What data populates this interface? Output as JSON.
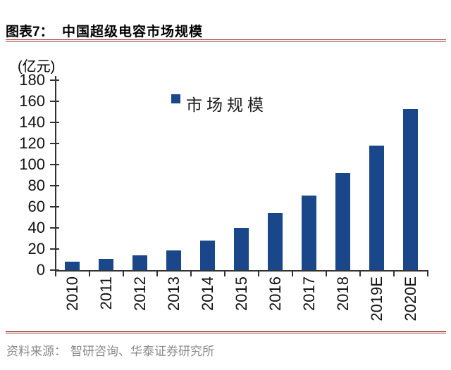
{
  "figure": {
    "label": "图表7：",
    "title": "中国超级电容市场规模"
  },
  "chart_data": {
    "type": "bar",
    "title": "中国超级电容市场规模",
    "ylabel": "(亿元)",
    "xlabel": "",
    "categories": [
      "2010",
      "2011",
      "2012",
      "2013",
      "2014",
      "2015",
      "2016",
      "2017",
      "2018",
      "2019E",
      "2020E"
    ],
    "values": [
      8,
      11,
      14,
      19,
      28,
      40,
      54,
      71,
      92,
      118,
      153
    ],
    "ylim": [
      0,
      180
    ],
    "ytick_interval": 20,
    "grid": false,
    "legend_position": "top-center",
    "legend": [
      {
        "label": "市场规模",
        "color": "#1A478A"
      }
    ],
    "bar_color": "#1A478A",
    "axis_color": "#333333"
  },
  "source": {
    "label": "资料来源：",
    "text": "智研咨询、华泰证券研究所"
  },
  "style": {
    "accent_line_color": "#97302A",
    "source_text_color": "#8A8A8A",
    "title_color": "#000000"
  }
}
